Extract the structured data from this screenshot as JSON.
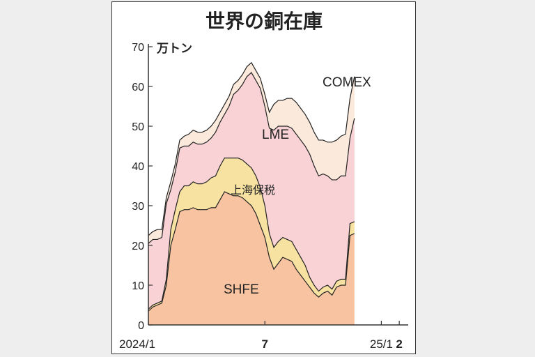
{
  "chart_data": {
    "type": "area",
    "stacked": true,
    "title": "世界の銅在庫",
    "unit_label": "万トン",
    "ylim": [
      0,
      70
    ],
    "yticks": [
      0,
      10,
      20,
      30,
      40,
      50,
      60,
      70
    ],
    "x_tick_labels": [
      {
        "at": 0,
        "label": "2024/1",
        "bold": false
      },
      {
        "at": 26,
        "label": "7",
        "bold": true
      },
      {
        "at": 52,
        "label": "25/1",
        "bold": false
      },
      {
        "at": 56,
        "label": "2",
        "bold": true
      }
    ],
    "x_max": 58,
    "series": [
      {
        "name": "SHFE",
        "color": "#f7c3a0",
        "values": [
          3.5,
          4.5,
          5.0,
          5.5,
          10,
          20,
          24,
          28.5,
          29,
          29,
          29.5,
          29,
          29,
          29,
          29.5,
          29.5,
          31.5,
          33.5,
          33,
          32.5,
          32.5,
          32,
          31,
          30,
          28,
          25,
          22,
          17,
          14,
          15.5,
          17,
          16.5,
          16,
          14,
          12.5,
          11,
          9.5,
          8,
          7,
          8,
          8.5,
          7.5,
          9.5,
          10,
          10,
          22.5,
          23
        ]
      },
      {
        "name": "上海保税",
        "color": "#f7e2a2",
        "values": [
          0.5,
          0.5,
          0.5,
          0.5,
          1.5,
          4,
          5,
          5,
          6,
          6,
          6.5,
          6.5,
          6.5,
          7,
          7.5,
          8,
          8.5,
          8.5,
          9,
          9.5,
          9.5,
          9.5,
          9.5,
          9.5,
          9.5,
          9.5,
          8,
          6,
          5.5,
          5.5,
          5,
          5,
          5,
          5,
          4.5,
          4,
          2.5,
          2,
          1.5,
          1.5,
          1.5,
          1.5,
          1.5,
          1.5,
          1.5,
          3,
          3
        ]
      },
      {
        "name": "LME",
        "color": "#f8d2d4",
        "values": [
          16.5,
          16.5,
          16,
          16,
          19,
          10,
          9.5,
          11,
          10,
          10,
          10,
          10,
          10,
          10,
          10,
          11,
          11,
          11,
          13,
          16,
          17,
          19,
          22,
          24,
          24,
          25,
          25,
          26.5,
          29.5,
          29,
          28,
          28.5,
          28.5,
          29,
          29.5,
          30,
          31,
          30,
          29,
          28.5,
          27.5,
          27.5,
          25.5,
          26,
          26,
          21.5,
          26
        ]
      },
      {
        "name": "COMEX",
        "color": "#fbe9dc",
        "values": [
          2,
          2,
          2.5,
          2,
          1.5,
          2,
          2,
          2,
          2.5,
          3,
          3,
          3,
          3,
          3,
          3,
          3,
          2.5,
          2.5,
          2.5,
          2.5,
          2.5,
          2.5,
          2.5,
          2.5,
          2.5,
          2.5,
          3,
          4,
          6.5,
          6.5,
          6.5,
          7,
          7.5,
          8,
          8,
          8,
          8,
          8.5,
          9,
          8.5,
          8.5,
          9.5,
          10,
          10,
          10.5,
          10,
          10.5
        ]
      }
    ]
  },
  "labels": {
    "comex": "COMEX",
    "lme": "LME",
    "bonded": "上海保税",
    "shfe": "SHFE"
  }
}
